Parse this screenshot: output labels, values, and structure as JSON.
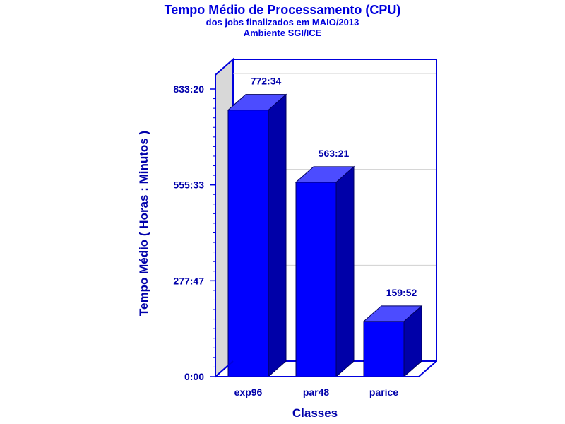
{
  "chart_data": {
    "type": "bar",
    "title": "Tempo Médio de Processamento (CPU)",
    "subtitle": "dos jobs finalizados em MAIO/2013",
    "subtitle2": "Ambiente SGI/ICE",
    "xlabel": "Classes",
    "ylabel": "Tempo Médio ( Horas : Minutos )",
    "categories": [
      "exp96",
      "par48",
      "parice"
    ],
    "values": [
      772.567,
      563.35,
      159.867
    ],
    "value_labels": [
      "772:34",
      "563:21",
      "159:52"
    ],
    "ylim": [
      0,
      833.333
    ],
    "y_ticks": [
      {
        "value": 0,
        "label": "0:00"
      },
      {
        "value": 277.783,
        "label": "277:47"
      },
      {
        "value": 555.55,
        "label": "555:33"
      },
      {
        "value": 833.333,
        "label": "833:20"
      }
    ],
    "grid": true,
    "three_d": true,
    "colors": {
      "bar_front": "#0000ff",
      "bar_top": "#4c4cff",
      "bar_side": "#0000a8",
      "text": "#0000aa",
      "axis": "#0000dd",
      "wall": "#d8d8d8"
    }
  }
}
